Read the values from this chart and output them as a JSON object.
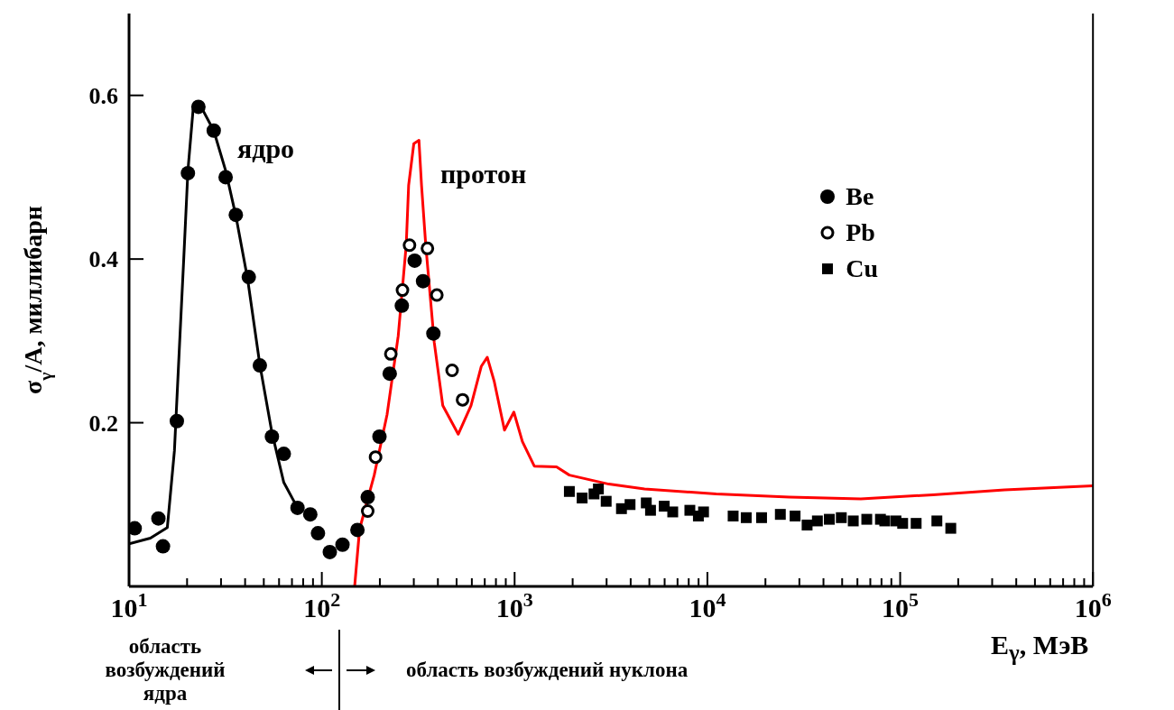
{
  "chart_data": {
    "type": "scatter",
    "xlabel": "E$_{γ}$, МэВ",
    "ylabel": "σ$_{γ}$/A, миллибарн",
    "log": "x",
    "xlim": [
      10,
      1000000
    ],
    "ylim": [
      0,
      0.7
    ],
    "xticks": [
      {
        "value": 10,
        "label": "10$^{1}$"
      },
      {
        "value": 20,
        "label": null
      },
      {
        "value": 30,
        "label": null
      },
      {
        "value": 40,
        "label": null
      },
      {
        "value": 50,
        "label": null
      },
      {
        "value": 60,
        "label": null
      },
      {
        "value": 70,
        "label": null
      },
      {
        "value": 80,
        "label": null
      },
      {
        "value": 90,
        "label": null
      },
      {
        "value": 100,
        "label": "10$^{2}$"
      },
      {
        "value": 200,
        "label": null
      },
      {
        "value": 300,
        "label": null
      },
      {
        "value": 400,
        "label": null
      },
      {
        "value": 500,
        "label": null
      },
      {
        "value": 600,
        "label": null
      },
      {
        "value": 700,
        "label": null
      },
      {
        "value": 800,
        "label": null
      },
      {
        "value": 900,
        "label": null
      },
      {
        "value": 1000,
        "label": "10$^{3}$"
      },
      {
        "value": 2000,
        "label": null
      },
      {
        "value": 3000,
        "label": null
      },
      {
        "value": 4000,
        "label": null
      },
      {
        "value": 5000,
        "label": null
      },
      {
        "value": 6000,
        "label": null
      },
      {
        "value": 7000,
        "label": null
      },
      {
        "value": 8000,
        "label": null
      },
      {
        "value": 9000,
        "label": null
      },
      {
        "value": 10000,
        "label": "10$^{4}$"
      },
      {
        "value": 20000,
        "label": null
      },
      {
        "value": 30000,
        "label": null
      },
      {
        "value": 40000,
        "label": null
      },
      {
        "value": 50000,
        "label": null
      },
      {
        "value": 60000,
        "label": null
      },
      {
        "value": 70000,
        "label": null
      },
      {
        "value": 80000,
        "label": null
      },
      {
        "value": 90000,
        "label": null
      },
      {
        "value": 100000,
        "label": "10$^{5}$"
      },
      {
        "value": 200000,
        "label": null
      },
      {
        "value": 300000,
        "label": null
      },
      {
        "value": 400000,
        "label": null
      },
      {
        "value": 500000,
        "label": null
      },
      {
        "value": 600000,
        "label": null
      },
      {
        "value": 700000,
        "label": null
      },
      {
        "value": 800000,
        "label": null
      },
      {
        "value": 900000,
        "label": null
      },
      {
        "value": 1000000,
        "label": "10$^{6}$"
      }
    ],
    "yticks": [
      0.2,
      0.4,
      0.6
    ],
    "legend": "top right",
    "series": [
      {
        "name": "Be",
        "marker": "circle",
        "color": "#000000",
        "x": [
          10.7,
          14.2,
          15.0,
          17.7,
          20.2,
          22.9,
          27.5,
          31.7,
          35.8,
          41.8,
          47.7,
          55.1,
          63.5,
          74.8,
          87.1,
          95.5,
          110,
          128,
          153,
          173,
          199,
          225,
          260,
          303,
          335,
          379
        ],
        "values": [
          0.071,
          0.083,
          0.049,
          0.202,
          0.505,
          0.586,
          0.557,
          0.5,
          0.454,
          0.378,
          0.27,
          0.183,
          0.162,
          0.096,
          0.088,
          0.065,
          0.042,
          0.051,
          0.069,
          0.109,
          0.183,
          0.26,
          0.343,
          0.398,
          0.373,
          0.309
        ]
      },
      {
        "name": "Pb",
        "marker": "circle",
        "color": "#000000",
        "x": [
          173,
          190,
          228,
          262,
          285,
          353,
          395,
          474,
          537
        ],
        "values": [
          0.092,
          0.158,
          0.284,
          0.362,
          0.417,
          0.413,
          0.356,
          0.264,
          0.228
        ]
      },
      {
        "name": "Cu",
        "marker": "square",
        "color": "#000000",
        "x": [
          1923,
          2240,
          2582,
          2720,
          2985,
          3583,
          3970,
          4820,
          5070,
          5970,
          6610,
          8110,
          8980,
          9550,
          13600,
          15900,
          19100,
          23900,
          28500,
          32900,
          37200,
          42900,
          49500,
          57100,
          67100,
          79000,
          83200,
          95100,
          103000,
          121000,
          155000,
          183000
        ],
        "values": [
          0.116,
          0.108,
          0.113,
          0.119,
          0.104,
          0.095,
          0.1,
          0.102,
          0.093,
          0.098,
          0.091,
          0.093,
          0.086,
          0.091,
          0.086,
          0.084,
          0.084,
          0.088,
          0.086,
          0.075,
          0.08,
          0.082,
          0.084,
          0.08,
          0.082,
          0.082,
          0.08,
          0.08,
          0.077,
          0.077,
          0.08,
          0.071
        ]
      },
      {
        "type": "line",
        "marker": "none",
        "line_style": "solid",
        "color": "#000000",
        "x": [
          10,
          12.9,
          15.8,
          17.2,
          18.3,
          19.2,
          20.2,
          21.5,
          23.4,
          27.5,
          31.7,
          35.8,
          41.2,
          47.7,
          55.1,
          63.5,
          74
        ],
        "values": [
          0.052,
          0.059,
          0.072,
          0.166,
          0.298,
          0.398,
          0.508,
          0.583,
          0.588,
          0.557,
          0.508,
          0.453,
          0.376,
          0.271,
          0.188,
          0.127,
          0.098
        ]
      },
      {
        "type": "line",
        "marker": "none",
        "line_style": "solid",
        "color": "#ff0000",
        "x": [
          148,
          157,
          187,
          218,
          249,
          274,
          282,
          300,
          319,
          329,
          346,
          383,
          424,
          510,
          594,
          672,
          721,
          783,
          886,
          991,
          1097,
          1265,
          1650,
          1923,
          3080,
          4720,
          11100,
          26600,
          62500,
          148000,
          348000,
          1000000
        ],
        "values": [
          0,
          0.07,
          0.136,
          0.21,
          0.306,
          0.417,
          0.49,
          0.541,
          0.545,
          0.49,
          0.417,
          0.298,
          0.221,
          0.186,
          0.221,
          0.269,
          0.28,
          0.251,
          0.191,
          0.213,
          0.177,
          0.147,
          0.146,
          0.136,
          0.125,
          0.119,
          0.113,
          0.109,
          0.107,
          0.112,
          0.118,
          0.123
        ]
      }
    ],
    "annotations": [
      "ядро",
      "протон",
      "область возбуждений ядра",
      "область возбуждений нуклона"
    ]
  }
}
